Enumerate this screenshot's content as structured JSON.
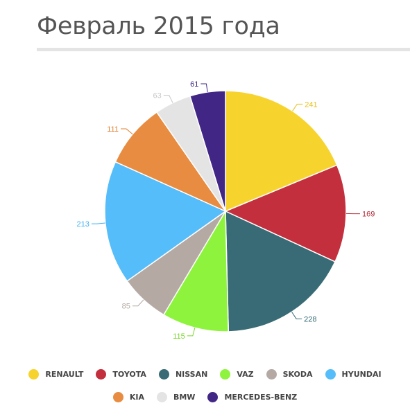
{
  "page": {
    "title": "Февраль 2015 года"
  },
  "chart_data": {
    "type": "pie",
    "categories": [
      "RENAULT",
      "TOYOTA",
      "NISSAN",
      "VAZ",
      "SKODA",
      "HYUNDAI",
      "KIA",
      "BMW",
      "MERCEDES-BENZ"
    ],
    "values": [
      241,
      169,
      228,
      115,
      85,
      213,
      111,
      63,
      61
    ],
    "colors": [
      "#f7d32d",
      "#c32f3d",
      "#386b75",
      "#8ef33d",
      "#b5a9a4",
      "#55bdf9",
      "#e88c41",
      "#e4e4e4",
      "#412685"
    ],
    "label_colors": [
      "#e8c21a",
      "#b02a37",
      "#386b75",
      "#7ad62c",
      "#b5a9a4",
      "#3fb0f3",
      "#e08030",
      "#c8c8c8",
      "#412685"
    ],
    "legend_placement": "bottom",
    "legend": {
      "row1": [
        {
          "label": "RENAULT",
          "color": "#f7d32d"
        },
        {
          "label": "TOYOTA",
          "color": "#c32f3d"
        },
        {
          "label": "NISSAN",
          "color": "#386b75"
        },
        {
          "label": "VAZ",
          "color": "#8ef33d"
        },
        {
          "label": "SKODA",
          "color": "#b5a9a4"
        },
        {
          "label": "HYUNDAI",
          "color": "#55bdf9"
        }
      ],
      "row2": [
        {
          "label": "KIA",
          "color": "#e88c41"
        },
        {
          "label": "BMW",
          "color": "#e4e4e4"
        },
        {
          "label": "MERCEDES-BENZ",
          "color": "#412685"
        }
      ]
    }
  }
}
